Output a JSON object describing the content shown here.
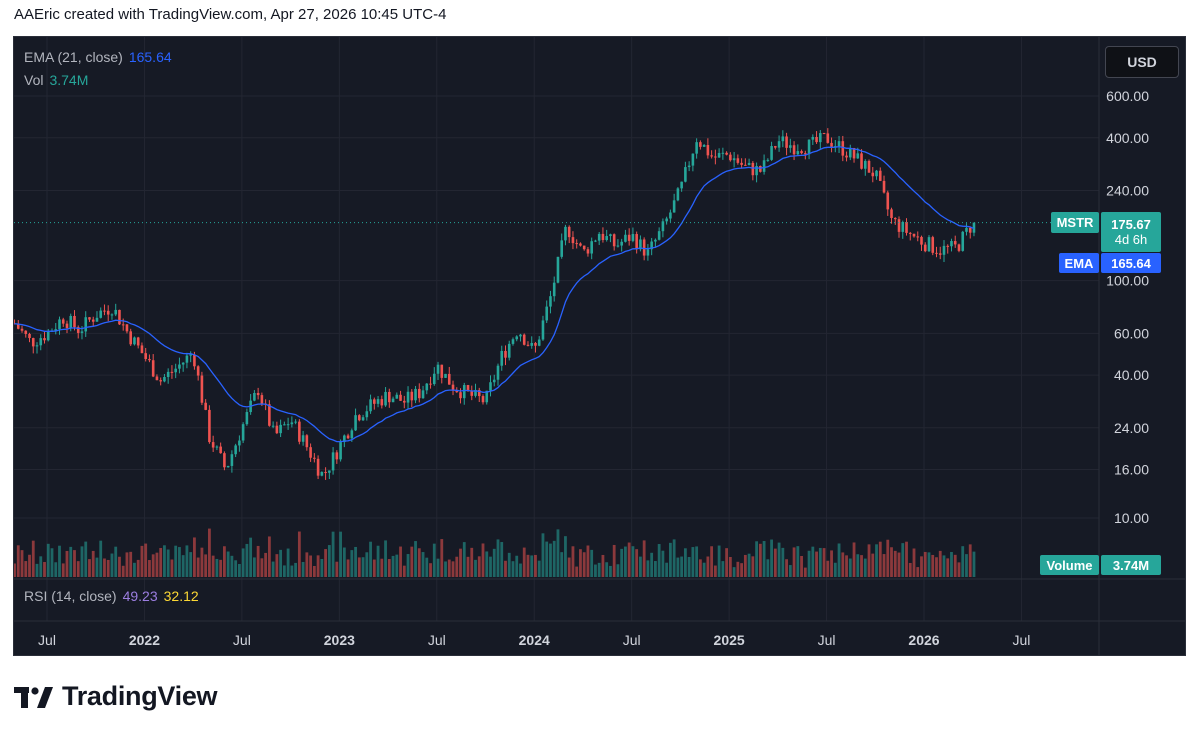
{
  "header": {
    "text": "AAEric created with TradingView.com, Apr 27, 2026 10:45 UTC-4"
  },
  "currency_button": "USD",
  "legend": {
    "ema_label": "EMA (21, close)",
    "ema_value": "165.64",
    "vol_label": "Vol",
    "vol_value": "3.74M",
    "rsi_label": "RSI (14, close)",
    "rsi_value": "49.23",
    "rsi_ma_value": "32.12"
  },
  "price_tags": {
    "symbol": "MSTR",
    "last_price": "175.67",
    "countdown": "4d 6h",
    "ema_tag": "EMA",
    "ema_value": "165.64",
    "volume_tag": "Volume",
    "volume_value": "3.74M"
  },
  "colors": {
    "background": "#161a25",
    "up": "#26a69a",
    "down": "#ef5350",
    "ema": "#2962ff",
    "rsi": "#7e57c2",
    "rsi_ma": "#fdd835",
    "grid": "#232632",
    "text": "#b2b5be"
  },
  "branding": {
    "name": "TradingView",
    "logo_icon": "tradingview-logo-icon"
  },
  "chart_data": {
    "type": "candlestick",
    "symbol": "MSTR",
    "timeframe": "weekly",
    "price_scale": "log",
    "y_ticks": [
      "600.00",
      "400.00",
      "240.00",
      "100.00",
      "60.00",
      "40.00",
      "24.00",
      "16.00",
      "10.00"
    ],
    "x_ticks": [
      "Jul",
      "2022",
      "Jul",
      "2023",
      "Jul",
      "2024",
      "Jul",
      "2025",
      "Jul",
      "2026",
      "Jul"
    ],
    "ylim": [
      8,
      720
    ],
    "grid": true,
    "x_start": "2021-05",
    "x_end": "2026-08",
    "close_path": [
      [
        "2021-05",
        66
      ],
      [
        "2021-06",
        55
      ],
      [
        "2021-07",
        60
      ],
      [
        "2021-08",
        70
      ],
      [
        "2021-09",
        62
      ],
      [
        "2021-10",
        72
      ],
      [
        "2021-11",
        78
      ],
      [
        "2021-12",
        60
      ],
      [
        "2022-01",
        48
      ],
      [
        "2022-02",
        38
      ],
      [
        "2022-03",
        43
      ],
      [
        "2022-04",
        50
      ],
      [
        "2022-05",
        22
      ],
      [
        "2022-06",
        16
      ],
      [
        "2022-07",
        24
      ],
      [
        "2022-08",
        35
      ],
      [
        "2022-09",
        22
      ],
      [
        "2022-10",
        26
      ],
      [
        "2022-11",
        20
      ],
      [
        "2022-12",
        15
      ],
      [
        "2023-01",
        20
      ],
      [
        "2023-02",
        27
      ],
      [
        "2023-03",
        30
      ],
      [
        "2023-04",
        33
      ],
      [
        "2023-05",
        31
      ],
      [
        "2023-06",
        34
      ],
      [
        "2023-07",
        44
      ],
      [
        "2023-08",
        36
      ],
      [
        "2023-09",
        33
      ],
      [
        "2023-10",
        31
      ],
      [
        "2023-11",
        48
      ],
      [
        "2023-12",
        63
      ],
      [
        "2024-01",
        50
      ],
      [
        "2024-02",
        85
      ],
      [
        "2024-03",
        170
      ],
      [
        "2024-04",
        130
      ],
      [
        "2024-05",
        160
      ],
      [
        "2024-06",
        140
      ],
      [
        "2024-07",
        155
      ],
      [
        "2024-08",
        130
      ],
      [
        "2024-09",
        170
      ],
      [
        "2024-10",
        240
      ],
      [
        "2024-11",
        400
      ],
      [
        "2024-12",
        330
      ],
      [
        "2025-01",
        340
      ],
      [
        "2025-02",
        300
      ],
      [
        "2025-03",
        290
      ],
      [
        "2025-04",
        390
      ],
      [
        "2025-05",
        370
      ],
      [
        "2025-06",
        370
      ],
      [
        "2025-07",
        400
      ],
      [
        "2025-08",
        360
      ],
      [
        "2025-09",
        320
      ],
      [
        "2025-10",
        280
      ],
      [
        "2025-11",
        180
      ],
      [
        "2025-12",
        160
      ],
      [
        "2026-01",
        145
      ],
      [
        "2026-02",
        135
      ],
      [
        "2026-03",
        138
      ],
      [
        "2026-04",
        175.67
      ]
    ],
    "ema_21": 165.64,
    "last_close": 175.67,
    "volume_last": "3.74M",
    "rsi": {
      "value": 49.23,
      "ma": 32.12
    }
  }
}
